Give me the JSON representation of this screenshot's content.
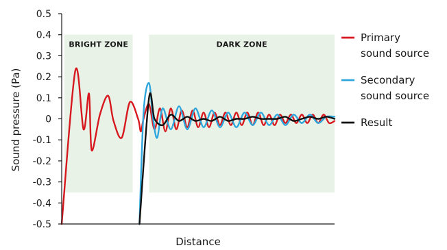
{
  "chart_data": {
    "type": "line",
    "title": "",
    "xlabel": "Distance",
    "ylabel": "Sound pressure (Pa)",
    "xlim": [
      0,
      1
    ],
    "ylim": [
      -0.5,
      0.5
    ],
    "y_ticks": [
      "0.5",
      "0.4",
      "0.3",
      "0.2",
      "0.1",
      "0",
      "-0.1",
      "-0.2",
      "-0.3",
      "-0.4",
      "-0.5"
    ],
    "y_tick_values": [
      0.5,
      0.4,
      0.3,
      0.2,
      0.1,
      0,
      -0.1,
      -0.2,
      -0.3,
      -0.4,
      -0.5
    ],
    "x_ticks_shown": false,
    "grid": false,
    "legend_position": "right",
    "zones": [
      {
        "label": "BRIGHT ZONE",
        "x_range": [
          0.01,
          0.26
        ],
        "y_range": [
          -0.35,
          0.4
        ],
        "color": "#e8f2e6"
      },
      {
        "label": "DARK ZONE",
        "x_range": [
          0.32,
          1.0
        ],
        "y_range": [
          -0.35,
          0.4
        ],
        "color": "#e8f2e6"
      }
    ],
    "series": [
      {
        "name": "Primary sound source",
        "legend_label": [
          "Primary",
          "sound source"
        ],
        "color": "#d7191f",
        "x": [
          0.0,
          0.05,
          0.08,
          0.1,
          0.11,
          0.14,
          0.17,
          0.19,
          0.22,
          0.25,
          0.28,
          0.29,
          0.3,
          0.32,
          0.34,
          0.36,
          0.38,
          0.4,
          0.42,
          0.44,
          0.46,
          0.48,
          0.5,
          0.52,
          0.54,
          0.56,
          0.58,
          0.6,
          0.62,
          0.64,
          0.66,
          0.68,
          0.7,
          0.72,
          0.74,
          0.76,
          0.78,
          0.8,
          0.82,
          0.84,
          0.86,
          0.88,
          0.9,
          0.92,
          0.94,
          0.96,
          0.98,
          1.0
        ],
        "values": [
          -0.5,
          0.23,
          -0.05,
          0.12,
          -0.15,
          0.02,
          0.11,
          -0.01,
          -0.09,
          0.08,
          0.0,
          -0.06,
          0.0,
          0.07,
          -0.05,
          0.05,
          -0.06,
          0.05,
          -0.05,
          0.04,
          -0.04,
          0.04,
          -0.04,
          0.03,
          -0.04,
          0.03,
          -0.03,
          0.03,
          -0.03,
          0.03,
          -0.03,
          0.03,
          -0.03,
          0.03,
          -0.03,
          0.02,
          -0.03,
          0.02,
          -0.02,
          0.02,
          -0.02,
          0.02,
          -0.02,
          0.02,
          -0.02,
          0.02,
          -0.02,
          -0.01
        ]
      },
      {
        "name": "Secondary sound source",
        "legend_label": [
          "Secondary",
          "sound source"
        ],
        "color": "#2ea6dc",
        "x": [
          0.285,
          0.3,
          0.32,
          0.335,
          0.35,
          0.37,
          0.4,
          0.43,
          0.46,
          0.49,
          0.52,
          0.55,
          0.58,
          0.61,
          0.64,
          0.67,
          0.7,
          0.73,
          0.76,
          0.79,
          0.82,
          0.85,
          0.88,
          0.91,
          0.94,
          0.97,
          1.0
        ],
        "values": [
          -0.5,
          0.03,
          0.17,
          0.0,
          -0.09,
          0.05,
          -0.05,
          0.06,
          -0.05,
          0.05,
          -0.04,
          0.04,
          -0.04,
          0.03,
          -0.04,
          0.03,
          -0.03,
          0.03,
          -0.03,
          0.02,
          -0.03,
          0.02,
          -0.02,
          0.02,
          -0.02,
          0.01,
          0.01
        ]
      },
      {
        "name": "Result",
        "legend_label": [
          "Result"
        ],
        "color": "#111111",
        "x": [
          0.285,
          0.32,
          0.34,
          0.37,
          0.4,
          0.43,
          0.46,
          0.49,
          0.52,
          0.55,
          0.58,
          0.61,
          0.64,
          0.67,
          0.7,
          0.73,
          0.76,
          0.79,
          0.82,
          0.85,
          0.88,
          0.91,
          0.94,
          0.97,
          1.0
        ],
        "values": [
          -0.5,
          0.1,
          0.0,
          -0.03,
          0.02,
          -0.01,
          0.01,
          -0.01,
          0.0,
          -0.01,
          0.01,
          -0.01,
          0.0,
          0.0,
          0.01,
          0.0,
          0.0,
          0.0,
          0.01,
          -0.01,
          0.0,
          0.01,
          0.0,
          0.01,
          0.0
        ]
      }
    ]
  }
}
